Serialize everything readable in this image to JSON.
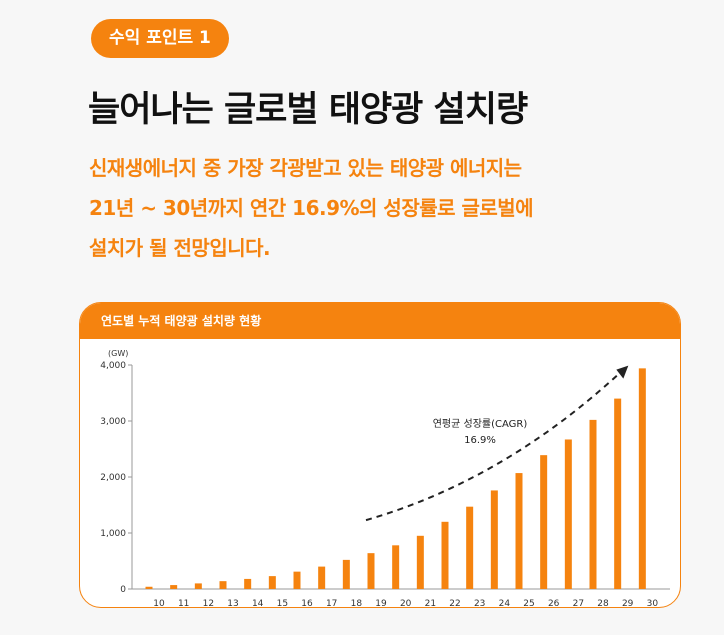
{
  "badge": {
    "label": "수익 포인트 1"
  },
  "title": "늘어나는 글로벌 태양광 설치량",
  "description": [
    "신재생에너지 중 가장 각광받고 있는 태양광 에너지는",
    "21년 ~ 30년까지 연간 16.9%의 성장률로 글로벌에",
    "설치가 될 전망입니다."
  ],
  "chart_card": {
    "header": "연도별 누적 태양광 설치량 현황"
  },
  "chart_data": {
    "type": "bar",
    "title": "연도별 누적 태양광 설치량 현황",
    "unit": "(GW)",
    "categories": [
      "10",
      "11",
      "12",
      "13",
      "14",
      "15",
      "16",
      "17",
      "18",
      "19",
      "20",
      "21",
      "22",
      "23",
      "24",
      "25",
      "26",
      "27",
      "28",
      "29",
      "30"
    ],
    "values": [
      40,
      70,
      100,
      140,
      180,
      230,
      310,
      400,
      520,
      640,
      780,
      950,
      1200,
      1470,
      1760,
      2070,
      2390,
      2670,
      3020,
      3400,
      3940
    ],
    "yticks": [
      "0",
      "1,000",
      "2,000",
      "3,000",
      "4,000"
    ],
    "ytick_values": [
      0,
      1000,
      2000,
      3000,
      4000
    ],
    "ylim": [
      0,
      4000
    ],
    "color": "#f5830f",
    "annotation": {
      "line1": "연평균 성장률(CAGR)",
      "line2": "16.9%"
    }
  }
}
